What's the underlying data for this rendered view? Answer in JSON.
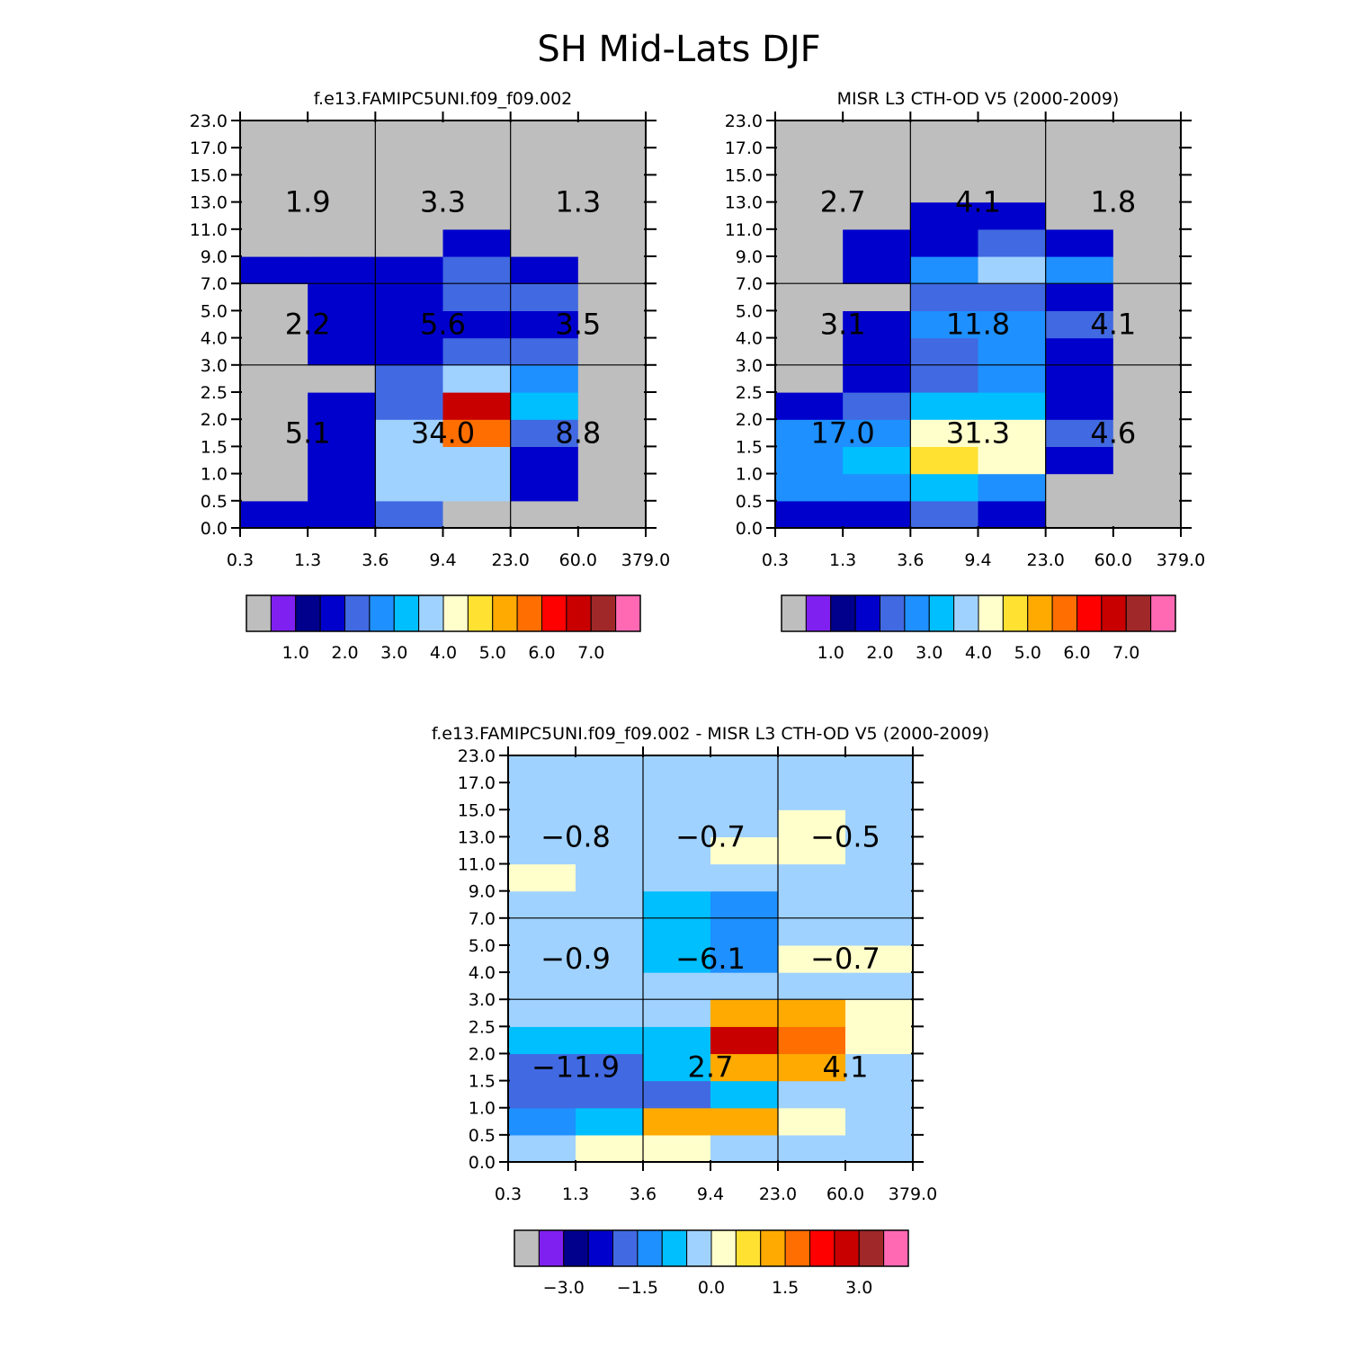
{
  "page_title": "SH Mid-Lats DJF",
  "palette": {
    "colors": [
      "#bebebe",
      "#8020f0",
      "#00008c",
      "#0000cd",
      "#4169e1",
      "#1e90ff",
      "#00bfff",
      "#a0d2ff",
      "#ffffcc",
      "#ffe132",
      "#ffaa00",
      "#ff6e00",
      "#ff0000",
      "#c80000",
      "#a02828",
      "#ff69b4"
    ],
    "levels_abs": [
      0.2,
      0.5,
      1,
      1.5,
      2,
      2.5,
      3,
      3.5,
      4,
      4.5,
      5,
      5.5,
      6,
      6.5,
      7
    ],
    "levels_diff": [
      -3.5,
      -3,
      -2.5,
      -2,
      -1.5,
      -1,
      -0.5,
      0,
      0.5,
      1,
      1.5,
      2,
      2.5,
      3,
      3.5
    ]
  },
  "axes": {
    "x_ticks": [
      "0.3",
      "1.3",
      "3.6",
      "9.4",
      "23.0",
      "60.0",
      "379.0"
    ],
    "y_ticks": [
      "0.0",
      "0.5",
      "1.0",
      "1.5",
      "2.0",
      "2.5",
      "3.0",
      "4.0",
      "5.0",
      "7.0",
      "9.0",
      "11.0",
      "13.0",
      "15.0",
      "17.0",
      "23.0"
    ]
  },
  "chart_data": [
    {
      "type": "heatmap",
      "title": "f.e13.FAMIPC5UNI.f09_f09.002",
      "rows_bottom_to_top": [
        [
          1.0,
          1.0,
          1.8,
          0.1,
          0.1,
          0.1
        ],
        [
          0.1,
          1.0,
          3.3,
          3.0,
          1.0,
          0.1
        ],
        [
          0.1,
          1.0,
          3.0,
          3.3,
          1.0,
          0.1
        ],
        [
          0.1,
          1.0,
          3.3,
          5.2,
          1.8,
          0.1
        ],
        [
          0.1,
          1.0,
          1.8,
          6.2,
          2.8,
          0.1
        ],
        [
          0.1,
          0.1,
          1.8,
          3.3,
          2.3,
          0.1
        ],
        [
          0.1,
          1.0,
          1.0,
          1.8,
          1.8,
          0.1
        ],
        [
          0.1,
          1.0,
          1.0,
          1.0,
          1.0,
          0.1
        ],
        [
          0.1,
          1.0,
          1.0,
          1.8,
          1.8,
          0.1
        ],
        [
          1.0,
          1.0,
          1.0,
          1.8,
          1.0,
          0.1
        ],
        [
          0.1,
          0.1,
          0.1,
          1.0,
          0.1,
          0.1
        ],
        [
          0.1,
          0.1,
          0.1,
          0.1,
          0.1,
          0.1
        ],
        [
          0.1,
          0.1,
          0.1,
          0.1,
          0.1,
          0.1
        ],
        [
          0.1,
          0.1,
          0.1,
          0.1,
          0.1,
          0.1
        ],
        [
          0.1,
          0.1,
          0.1,
          0.1,
          0.1,
          0.1
        ]
      ],
      "region_totals": [
        {
          "label": "1.9",
          "col": 0,
          "band": "high"
        },
        {
          "label": "3.3",
          "col": 1,
          "band": "high"
        },
        {
          "label": "1.3",
          "col": 2,
          "band": "high"
        },
        {
          "label": "2.2",
          "col": 0,
          "band": "mid"
        },
        {
          "label": "5.6",
          "col": 1,
          "band": "mid"
        },
        {
          "label": "3.5",
          "col": 2,
          "band": "mid"
        },
        {
          "label": "5.1",
          "col": 0,
          "band": "low"
        },
        {
          "label": "34.0",
          "col": 1,
          "band": "low"
        },
        {
          "label": "8.8",
          "col": 2,
          "band": "low"
        }
      ],
      "colorbar_labels": [
        "1.0",
        "2.0",
        "3.0",
        "4.0",
        "5.0",
        "6.0",
        "7.0"
      ]
    },
    {
      "type": "heatmap",
      "title": "MISR L3 CTH-OD V5 (2000-2009)",
      "rows_bottom_to_top": [
        [
          1.0,
          1.0,
          1.8,
          1.0,
          0.1,
          0.1
        ],
        [
          2.2,
          2.2,
          2.8,
          2.3,
          0.1,
          0.1
        ],
        [
          2.3,
          2.8,
          4.2,
          3.8,
          1.0,
          0.1
        ],
        [
          2.2,
          2.3,
          3.8,
          3.8,
          1.8,
          0.1
        ],
        [
          1.0,
          1.8,
          2.8,
          2.8,
          1.0,
          0.1
        ],
        [
          0.1,
          1.0,
          1.8,
          2.2,
          1.0,
          0.1
        ],
        [
          0.1,
          1.0,
          1.8,
          2.2,
          1.0,
          0.1
        ],
        [
          0.1,
          1.0,
          2.2,
          2.3,
          1.8,
          0.1
        ],
        [
          0.1,
          0.1,
          1.8,
          1.8,
          1.0,
          0.1
        ],
        [
          0.1,
          1.0,
          2.2,
          3.0,
          2.2,
          0.1
        ],
        [
          0.1,
          1.0,
          1.0,
          1.8,
          1.0,
          0.1
        ],
        [
          0.1,
          0.1,
          1.0,
          1.0,
          0.1,
          0.1
        ],
        [
          0.1,
          0.1,
          0.1,
          0.1,
          0.1,
          0.1
        ],
        [
          0.1,
          0.1,
          0.1,
          0.1,
          0.1,
          0.1
        ],
        [
          0.1,
          0.1,
          0.1,
          0.1,
          0.1,
          0.1
        ]
      ],
      "region_totals": [
        {
          "label": "2.7",
          "col": 0,
          "band": "high"
        },
        {
          "label": "4.1",
          "col": 1,
          "band": "high"
        },
        {
          "label": "1.8",
          "col": 2,
          "band": "high"
        },
        {
          "label": "3.1",
          "col": 0,
          "band": "mid"
        },
        {
          "label": "11.8",
          "col": 1,
          "band": "mid"
        },
        {
          "label": "4.1",
          "col": 2,
          "band": "mid"
        },
        {
          "label": "17.0",
          "col": 0,
          "band": "low"
        },
        {
          "label": "31.3",
          "col": 1,
          "band": "low"
        },
        {
          "label": "4.6",
          "col": 2,
          "band": "low"
        }
      ],
      "colorbar_labels": [
        "1.0",
        "2.0",
        "3.0",
        "4.0",
        "5.0",
        "6.0",
        "7.0"
      ]
    },
    {
      "type": "heatmap",
      "title": "f.e13.FAMIPC5UNI.f09_f09.002 - MISR L3 CTH-OD V5 (2000-2009)",
      "rows_bottom_to_top": [
        [
          -0.2,
          0.2,
          0.2,
          -0.2,
          -0.2,
          -0.2
        ],
        [
          -1.2,
          -0.8,
          1.2,
          1.2,
          0.2,
          -0.2
        ],
        [
          -1.8,
          -1.8,
          -1.8,
          -0.8,
          -0.2,
          -0.2
        ],
        [
          -1.8,
          -1.8,
          -0.8,
          1.2,
          1.2,
          -0.2
        ],
        [
          -0.8,
          -0.8,
          -0.8,
          2.8,
          1.8,
          0.2
        ],
        [
          -0.2,
          -0.2,
          -0.2,
          1.2,
          1.2,
          0.2
        ],
        [
          -0.2,
          -0.2,
          -0.2,
          -0.2,
          -0.2,
          -0.2
        ],
        [
          -0.2,
          -0.2,
          -0.8,
          -1.2,
          0.2,
          0.2
        ],
        [
          -0.2,
          -0.2,
          -0.8,
          -1.2,
          -0.2,
          -0.2
        ],
        [
          -0.2,
          -0.2,
          -0.8,
          -1.2,
          -0.2,
          -0.2
        ],
        [
          0.2,
          -0.2,
          -0.2,
          -0.2,
          -0.2,
          -0.2
        ],
        [
          -0.2,
          -0.2,
          -0.2,
          0.2,
          0.2,
          -0.2
        ],
        [
          -0.2,
          -0.2,
          -0.2,
          -0.2,
          0.2,
          -0.2
        ],
        [
          -0.2,
          -0.2,
          -0.2,
          -0.2,
          -0.2,
          -0.2
        ],
        [
          -0.2,
          -0.2,
          -0.2,
          -0.2,
          -0.2,
          -0.2
        ]
      ],
      "region_totals": [
        {
          "label": "-0.8",
          "col": 0,
          "band": "high"
        },
        {
          "label": "-0.7",
          "col": 1,
          "band": "high"
        },
        {
          "label": "-0.5",
          "col": 2,
          "band": "high"
        },
        {
          "label": "-0.9",
          "col": 0,
          "band": "mid"
        },
        {
          "label": "-6.1",
          "col": 1,
          "band": "mid"
        },
        {
          "label": "-0.7",
          "col": 2,
          "band": "mid"
        },
        {
          "label": "-11.9",
          "col": 0,
          "band": "low"
        },
        {
          "label": "2.7",
          "col": 1,
          "band": "low"
        },
        {
          "label": "4.1",
          "col": 2,
          "band": "low"
        }
      ],
      "colorbar_labels": [
        "-3.0",
        "-1.5",
        "0.0",
        "1.5",
        "3.0"
      ]
    }
  ]
}
